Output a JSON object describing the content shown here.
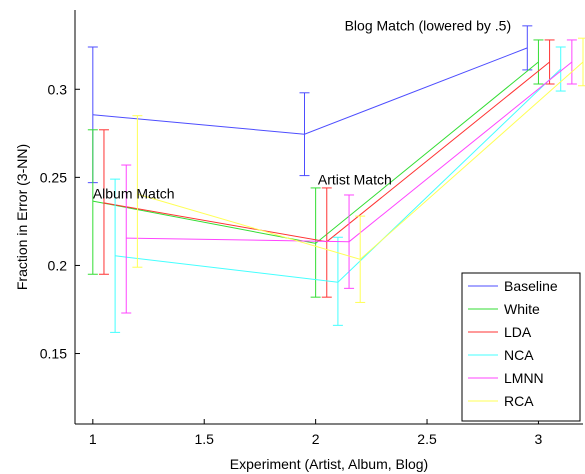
{
  "chart_data": {
    "type": "line",
    "xlabel": "Experiment (Artist, Album, Blog)",
    "ylabel": "Fraction in Error (3-NN)",
    "xlim": [
      0.92,
      3.2
    ],
    "ylim": [
      0.11,
      0.345
    ],
    "x_ticks": [
      1,
      1.5,
      2,
      2.5,
      3
    ],
    "x_tick_labels": [
      "1",
      "1.5",
      "2",
      "2.5",
      "3"
    ],
    "y_ticks": [
      0.15,
      0.2,
      0.25,
      0.3
    ],
    "y_tick_labels": [
      "0.15",
      "0.2",
      "0.25",
      "0.3"
    ],
    "legend_position": "bottom-right",
    "annotations": [
      {
        "text": "Album Match",
        "x": 1.0,
        "y": 0.238
      },
      {
        "text": "Artist Match",
        "x": 2.01,
        "y": 0.246
      },
      {
        "text": "Blog Match (lowered by .5)",
        "x": 2.13,
        "y": 0.3335
      }
    ],
    "series": [
      {
        "name": "Baseline",
        "color": "#4d4dff",
        "x": [
          1,
          1.95,
          2.95
        ],
        "y": [
          0.2855,
          0.2745,
          0.3235
        ],
        "err": [
          [
            0.247,
            0.324
          ],
          [
            0.251,
            0.298
          ],
          [
            0.311,
            0.336
          ]
        ]
      },
      {
        "name": "White",
        "color": "#33dd33",
        "x": [
          1,
          2.0,
          3.0
        ],
        "y": [
          0.2365,
          0.2125,
          0.3155
        ],
        "err": [
          [
            0.195,
            0.277
          ],
          [
            0.182,
            0.244
          ],
          [
            0.303,
            0.328
          ]
        ]
      },
      {
        "name": "LDA",
        "color": "#ff3333",
        "x": [
          1.05,
          2.05,
          3.05
        ],
        "y": [
          0.2355,
          0.2135,
          0.3155
        ],
        "err": [
          [
            0.195,
            0.277
          ],
          [
            0.182,
            0.244
          ],
          [
            0.303,
            0.328
          ]
        ]
      },
      {
        "name": "NCA",
        "color": "#44ffff",
        "x": [
          1.1,
          2.1,
          3.1
        ],
        "y": [
          0.2055,
          0.1905,
          0.3115
        ],
        "err": [
          [
            0.162,
            0.249
          ],
          [
            0.166,
            0.216
          ],
          [
            0.299,
            0.324
          ]
        ]
      },
      {
        "name": "LMNN",
        "color": "#ff44ff",
        "x": [
          1.15,
          2.15,
          3.15
        ],
        "y": [
          0.2155,
          0.2135,
          0.3155
        ],
        "err": [
          [
            0.173,
            0.257
          ],
          [
            0.187,
            0.24
          ],
          [
            0.303,
            0.328
          ]
        ]
      },
      {
        "name": "RCA",
        "color": "#ffff55",
        "x": [
          1.2,
          2.2,
          3.2
        ],
        "y": [
          0.2405,
          0.2035,
          0.3155
        ],
        "err": [
          [
            0.199,
            0.285
          ],
          [
            0.179,
            0.228
          ],
          [
            0.302,
            0.329
          ]
        ]
      }
    ]
  }
}
